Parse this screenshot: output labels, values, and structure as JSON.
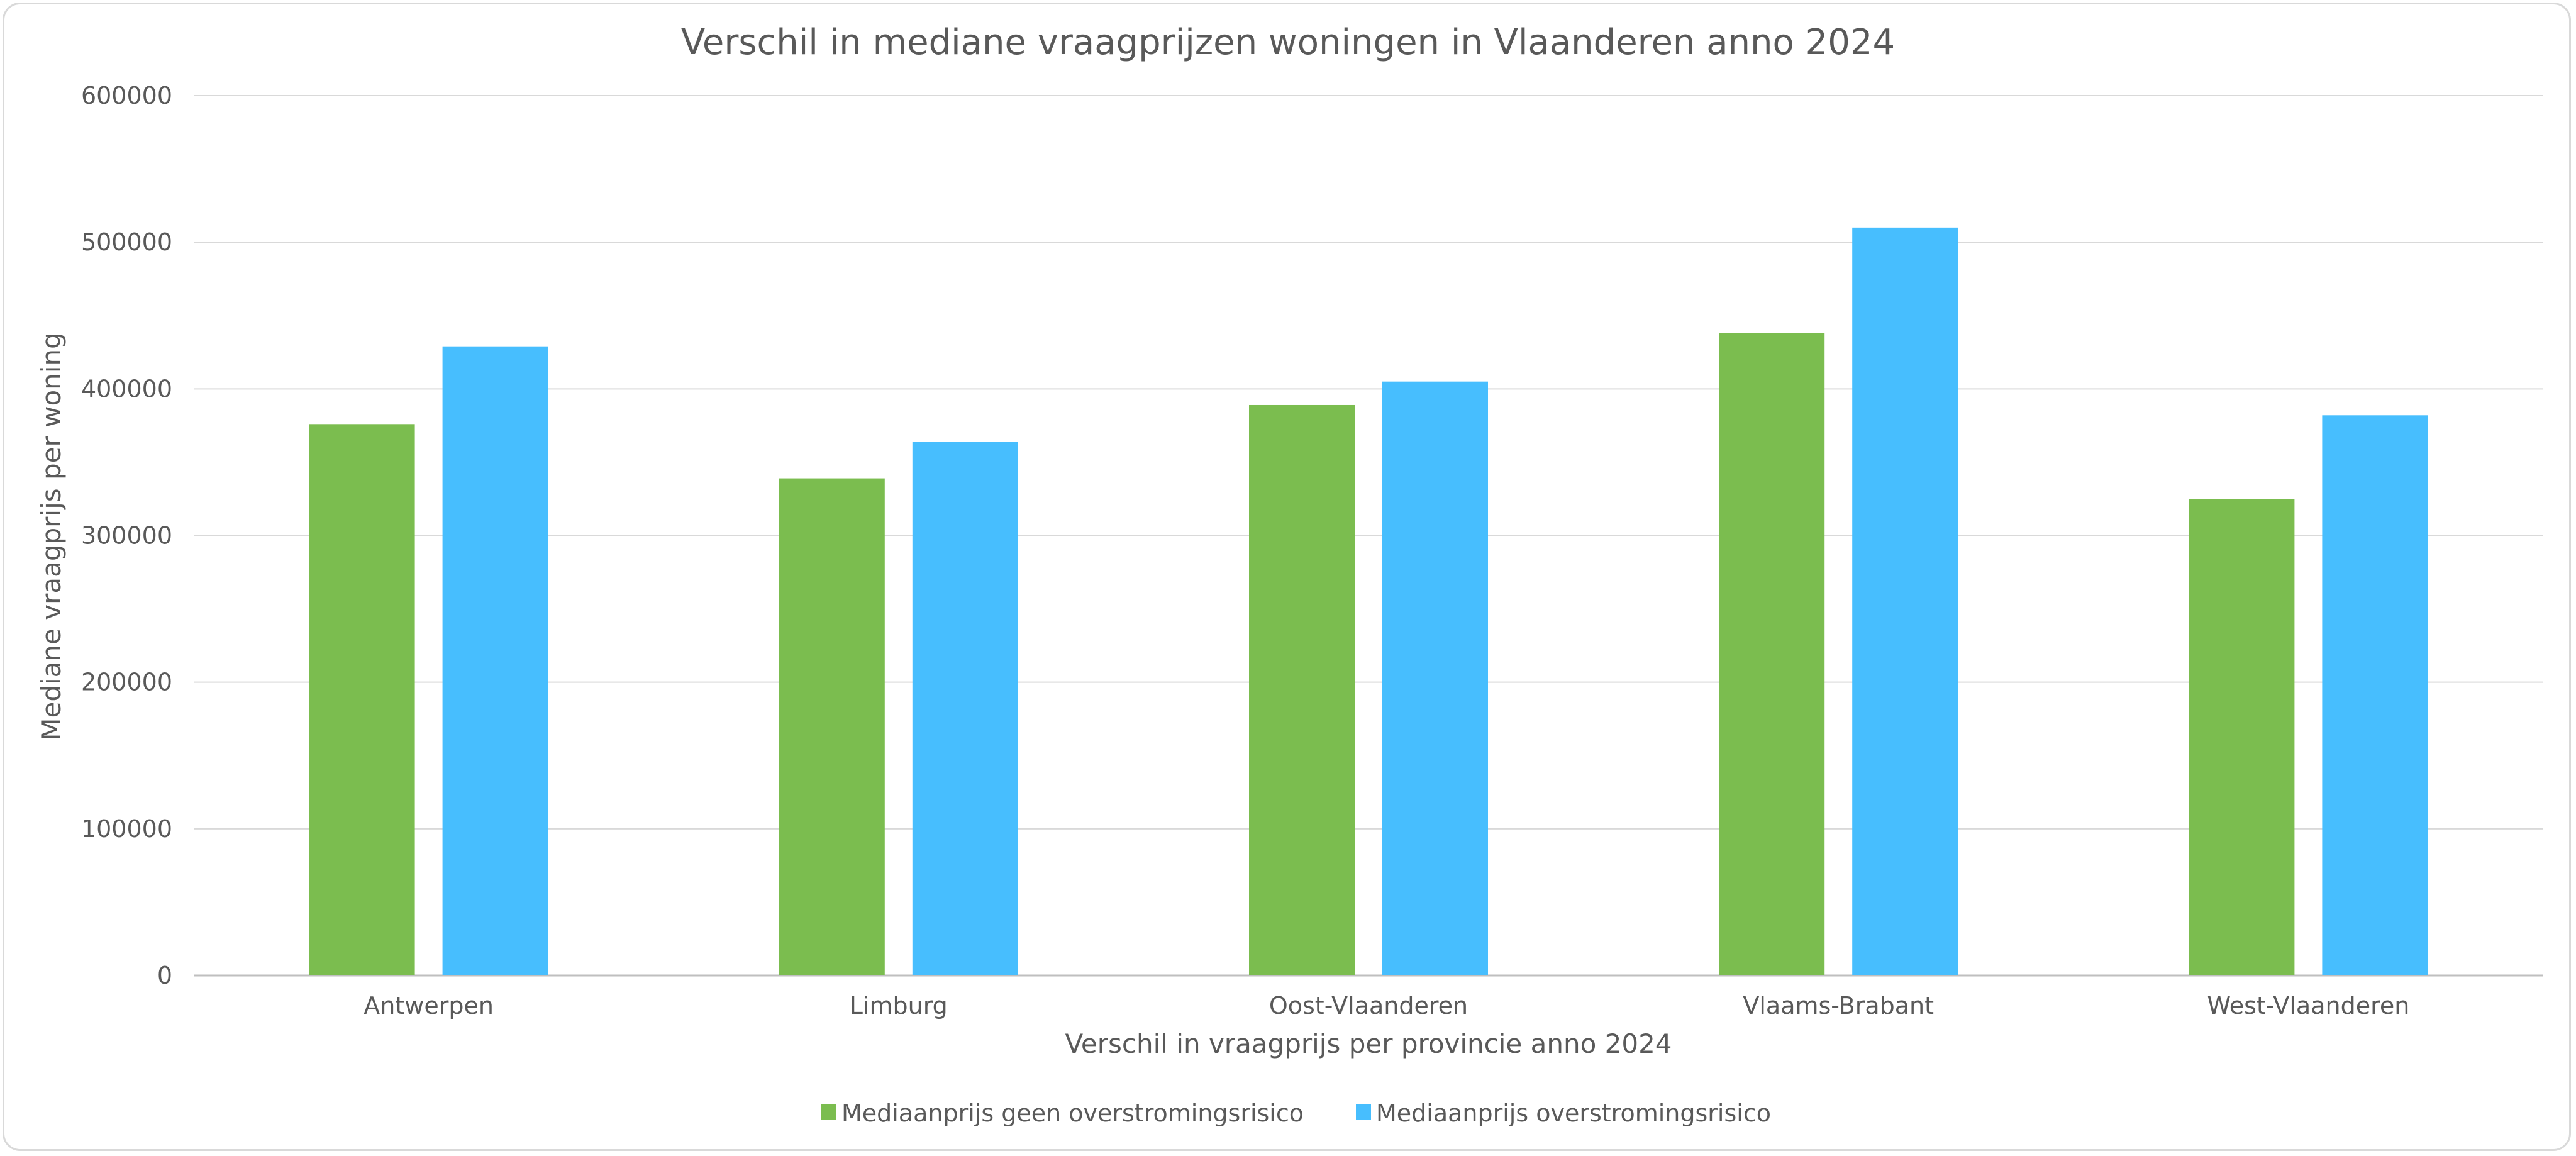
{
  "chart_data": {
    "type": "bar",
    "title": "Verschil in mediane vraagprijzen woningen in Vlaanderen anno 2024",
    "xlabel": "Verschil in vraagprijs per provincie anno 2024",
    "ylabel": "Mediane vraagprijs per woning",
    "categories": [
      "Antwerpen",
      "Limburg",
      "Oost-Vlaanderen",
      "Vlaams-Brabant",
      "West-Vlaanderen"
    ],
    "series": [
      {
        "name": "Mediaanprijs geen overstromingsrisico",
        "color": "#7bbd4f",
        "values": [
          376000,
          339000,
          389000,
          438000,
          325000
        ]
      },
      {
        "name": "Mediaanprijs overstromingsrisico",
        "color": "#47befe",
        "values": [
          429000,
          364000,
          405000,
          510000,
          382000
        ]
      }
    ],
    "ylim": [
      0,
      600000
    ],
    "yticks": [
      "0",
      "100000",
      "200000",
      "300000",
      "400000",
      "500000",
      "600000"
    ],
    "grid": true,
    "legend": "bottom"
  }
}
